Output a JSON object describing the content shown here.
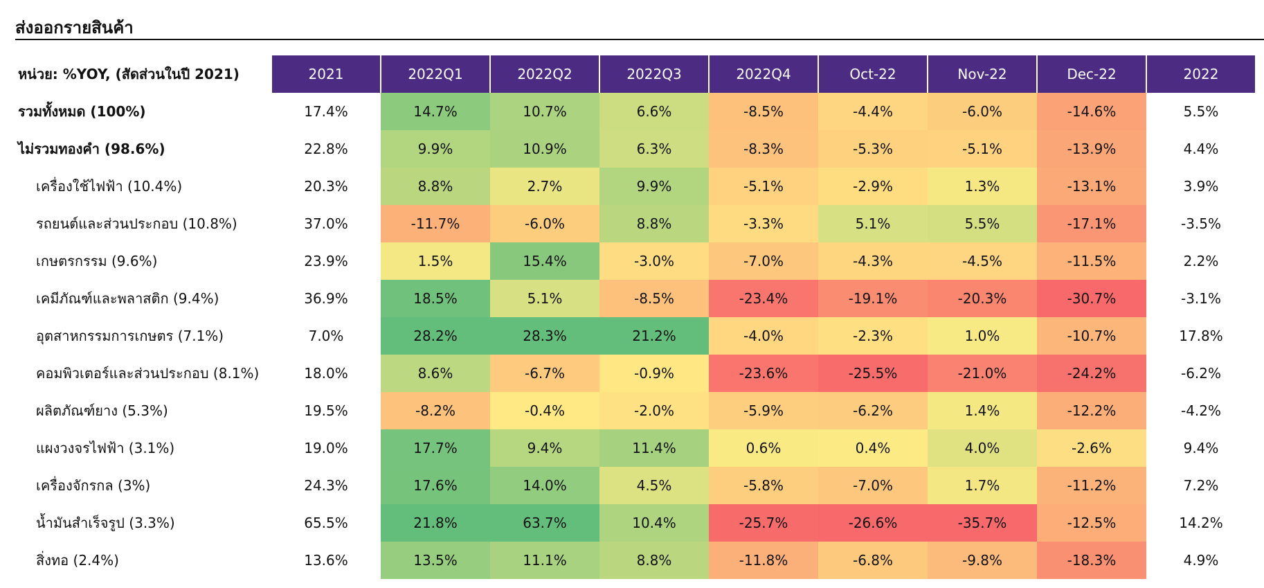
{
  "title": "ส่งออกรายสินค้า",
  "chart_data": {
    "type": "heatmap",
    "unit_label": "หน่วย: %YOY, (สัดส่วนในปี 2021)",
    "columns": [
      "2021",
      "2022Q1",
      "2022Q2",
      "2022Q3",
      "2022Q4",
      "Oct-22",
      "Nov-22",
      "Dec-22",
      "2022"
    ],
    "colored_columns": [
      "2022Q1",
      "2022Q2",
      "2022Q3",
      "2022Q4",
      "Oct-22",
      "Nov-22",
      "Dec-22"
    ],
    "colors": {
      "header_bg": "#4b2c82",
      "low": "#f8696b",
      "mid": "#ffeb84",
      "high": "#63be7b"
    },
    "rows": [
      {
        "label": "รวมทั้งหมด (100%)",
        "bold": true,
        "indent": false,
        "values": [
          17.4,
          14.7,
          10.7,
          6.6,
          -8.5,
          -4.4,
          -6.0,
          -14.6,
          5.5
        ]
      },
      {
        "label": "ไม่รวมทองคำ (98.6%)",
        "bold": true,
        "indent": false,
        "values": [
          22.8,
          9.9,
          10.9,
          6.3,
          -8.3,
          -5.3,
          -5.1,
          -13.9,
          4.4
        ]
      },
      {
        "label": "เครื่องใช้ไฟฟ้า (10.4%)",
        "bold": false,
        "indent": true,
        "values": [
          20.3,
          8.8,
          2.7,
          9.9,
          -5.1,
          -2.9,
          1.3,
          -13.1,
          3.9
        ]
      },
      {
        "label": "รถยนต์และส่วนประกอบ (10.8%)",
        "bold": false,
        "indent": true,
        "values": [
          37.0,
          -11.7,
          -6.0,
          8.8,
          -3.3,
          5.1,
          5.5,
          -17.1,
          -3.5
        ]
      },
      {
        "label": "เกษตรกรรม (9.6%)",
        "bold": false,
        "indent": true,
        "values": [
          23.9,
          1.5,
          15.4,
          -3.0,
          -7.0,
          -4.3,
          -4.5,
          -11.5,
          2.2
        ]
      },
      {
        "label": "เคมีภัณฑ์และพลาสติก (9.4%)",
        "bold": false,
        "indent": true,
        "values": [
          36.9,
          18.5,
          5.1,
          -8.5,
          -23.4,
          -19.1,
          -20.3,
          -30.7,
          -3.1
        ]
      },
      {
        "label": "อุตสาหกรรมการเกษตร (7.1%)",
        "bold": false,
        "indent": true,
        "values": [
          7.0,
          28.2,
          28.3,
          21.2,
          -4.0,
          -2.3,
          1.0,
          -10.7,
          17.8
        ]
      },
      {
        "label": "คอมพิวเตอร์และส่วนประกอบ (8.1%)",
        "bold": false,
        "indent": true,
        "values": [
          18.0,
          8.6,
          -6.7,
          -0.9,
          -23.6,
          -25.5,
          -21.0,
          -24.2,
          -6.2
        ]
      },
      {
        "label": "ผลิตภัณฑ์ยาง (5.3%)",
        "bold": false,
        "indent": true,
        "values": [
          19.5,
          -8.2,
          -0.4,
          -2.0,
          -5.9,
          -6.2,
          1.4,
          -12.2,
          -4.2
        ]
      },
      {
        "label": "แผงวงจรไฟฟ้า (3.1%)",
        "bold": false,
        "indent": true,
        "values": [
          19.0,
          17.7,
          9.4,
          11.4,
          0.6,
          0.4,
          4.0,
          -2.6,
          9.4
        ]
      },
      {
        "label": "เครื่องจักรกล (3%)",
        "bold": false,
        "indent": true,
        "values": [
          24.3,
          17.6,
          14.0,
          4.5,
          -5.8,
          -7.0,
          1.7,
          -11.2,
          7.2
        ]
      },
      {
        "label": "น้ำมันสำเร็จรูป (3.3%)",
        "bold": false,
        "indent": true,
        "values": [
          65.5,
          21.8,
          63.7,
          10.4,
          -25.7,
          -26.6,
          -35.7,
          -12.5,
          14.2
        ]
      },
      {
        "label": "สิ่งทอ (2.4%)",
        "bold": false,
        "indent": true,
        "values": [
          13.6,
          13.5,
          11.1,
          8.8,
          -11.8,
          -6.8,
          -9.8,
          -18.3,
          4.9
        ]
      }
    ]
  }
}
